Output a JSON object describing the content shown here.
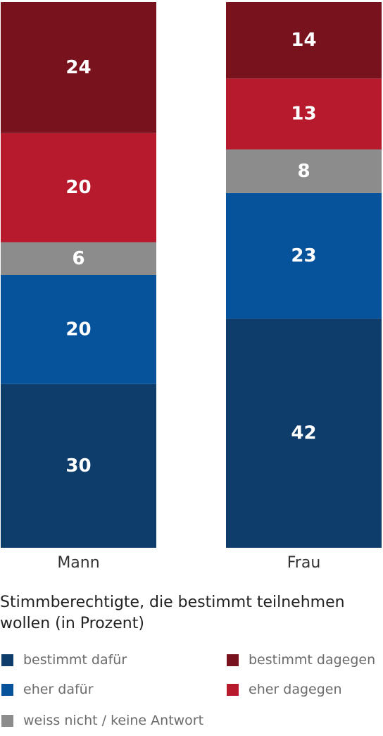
{
  "chart_data": {
    "type": "bar",
    "stacked": true,
    "orientation": "vertical",
    "categories": [
      "Mann",
      "Frau"
    ],
    "series": [
      {
        "name": "bestimmt dafür",
        "color": "#0f3d6b",
        "values": [
          30,
          42
        ]
      },
      {
        "name": "eher dafür",
        "color": "#06539b",
        "values": [
          20,
          23
        ]
      },
      {
        "name": "weiss nicht / keine Antwort",
        "color": "#8c8c8c",
        "values": [
          6,
          8
        ]
      },
      {
        "name": "eher dagegen",
        "color": "#b81a2d",
        "values": [
          20,
          13
        ]
      },
      {
        "name": "bestimmt dagegen",
        "color": "#78131e",
        "values": [
          24,
          14
        ]
      }
    ],
    "title": "",
    "subtitle": "Stimmberechtigte, die bestimmt teilnehmen wollen (in Prozent)",
    "xlabel": "",
    "ylabel": "",
    "ylim": [
      0,
      100
    ],
    "grid": false,
    "legend_position": "bottom"
  }
}
